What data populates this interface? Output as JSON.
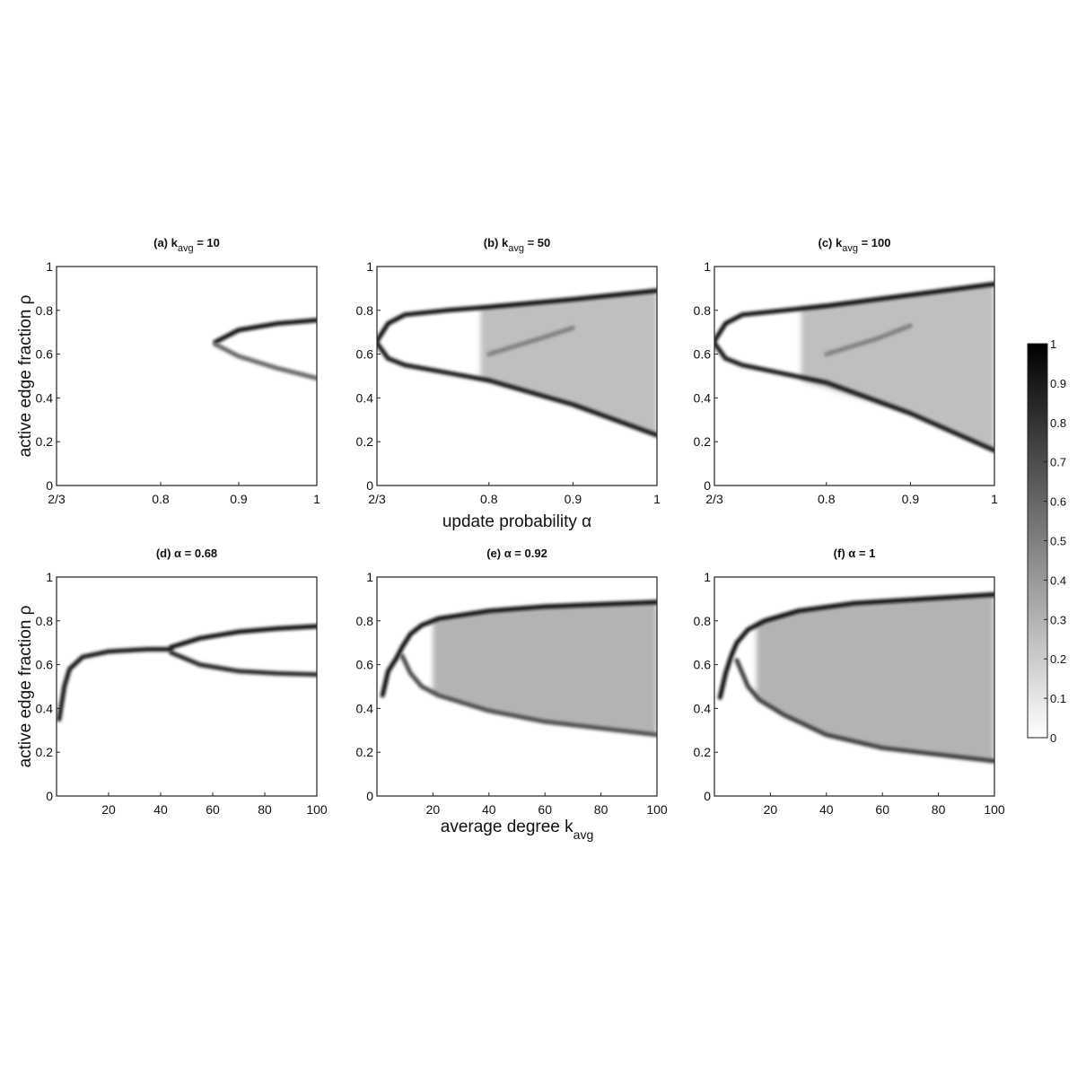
{
  "chart_data": {
    "type": "heatmap",
    "description_labels": {
      "xlabel_top": "update probability α",
      "xlabel_bottom_main": "average degree k",
      "xlabel_bottom_sub": "avg",
      "ylabel": "active edge fraction ρ"
    },
    "colorbar": {
      "range": [
        0,
        1
      ],
      "ticks": [
        "0",
        "0.1",
        "0.2",
        "0.3",
        "0.4",
        "0.5",
        "0.6",
        "0.7",
        "0.8",
        "0.9",
        "1"
      ],
      "colormap": "white-to-black"
    },
    "panels": [
      {
        "id": "a",
        "title_prefix": "(a) k",
        "title_sub": "avg",
        "title_suffix": " = 10",
        "xlim": [
          0.6667,
          1
        ],
        "ylim": [
          0,
          1
        ],
        "xticks": [
          [
            0.6667,
            "2/3"
          ],
          [
            0.8,
            "0.8"
          ],
          [
            0.9,
            "0.9"
          ],
          [
            1,
            "1"
          ]
        ],
        "yticks": [
          "0",
          "0.2",
          "0.4",
          "0.6",
          "0.8",
          "1"
        ],
        "branches": [
          {
            "pts": [
              [
                0.6667,
                0.65
              ],
              [
                0.8,
                0.65
              ],
              [
                0.87,
                0.65
              ]
            ],
            "intensity": 0.95
          },
          {
            "pts": [
              [
                0.87,
                0.655
              ],
              [
                0.9,
                0.71
              ],
              [
                0.95,
                0.74
              ],
              [
                1,
                0.755
              ]
            ],
            "intensity": 0.95
          },
          {
            "pts": [
              [
                0.87,
                0.645
              ],
              [
                0.9,
                0.59
              ],
              [
                0.95,
                0.535
              ],
              [
                1,
                0.49
              ]
            ],
            "intensity": 0.6
          }
        ],
        "clouds": []
      },
      {
        "id": "b",
        "title_prefix": "(b) k",
        "title_sub": "avg",
        "title_suffix": " = 50",
        "xlim": [
          0.6667,
          1
        ],
        "ylim": [
          0,
          1
        ],
        "xticks": [
          [
            0.6667,
            "2/3"
          ],
          [
            0.8,
            "0.8"
          ],
          [
            0.9,
            "0.9"
          ],
          [
            1,
            "1"
          ]
        ],
        "yticks": [
          "0",
          "0.2",
          "0.4",
          "0.6",
          "0.8",
          "1"
        ],
        "branches": [
          {
            "pts": [
              [
                0.6667,
                0.66
              ],
              [
                0.68,
                0.74
              ],
              [
                0.7,
                0.78
              ],
              [
                0.75,
                0.8
              ],
              [
                0.8,
                0.815
              ],
              [
                0.9,
                0.85
              ],
              [
                1,
                0.89
              ]
            ],
            "intensity": 0.95
          },
          {
            "pts": [
              [
                0.6667,
                0.65
              ],
              [
                0.68,
                0.58
              ],
              [
                0.7,
                0.55
              ],
              [
                0.75,
                0.515
              ],
              [
                0.8,
                0.48
              ],
              [
                0.9,
                0.37
              ],
              [
                1,
                0.23
              ]
            ],
            "intensity": 0.9
          },
          {
            "pts": [
              [
                0.8,
                0.6
              ],
              [
                0.86,
                0.67
              ],
              [
                0.9,
                0.72
              ]
            ],
            "intensity": 0.5
          }
        ],
        "clouds": [
          {
            "upper": [
              [
                0.79,
                0.81
              ],
              [
                0.9,
                0.85
              ],
              [
                1,
                0.89
              ]
            ],
            "lower": [
              [
                0.79,
                0.49
              ],
              [
                0.9,
                0.37
              ],
              [
                1,
                0.23
              ]
            ],
            "intensity": 0.25
          }
        ]
      },
      {
        "id": "c",
        "title_prefix": "(c) k",
        "title_sub": "avg",
        "title_suffix": " = 100",
        "xlim": [
          0.6667,
          1
        ],
        "ylim": [
          0,
          1
        ],
        "xticks": [
          [
            0.6667,
            "2/3"
          ],
          [
            0.8,
            "0.8"
          ],
          [
            0.9,
            "0.9"
          ],
          [
            1,
            "1"
          ]
        ],
        "yticks": [
          "0",
          "0.2",
          "0.4",
          "0.6",
          "0.8",
          "1"
        ],
        "branches": [
          {
            "pts": [
              [
                0.6667,
                0.66
              ],
              [
                0.68,
                0.74
              ],
              [
                0.7,
                0.78
              ],
              [
                0.75,
                0.8
              ],
              [
                0.8,
                0.82
              ],
              [
                0.9,
                0.87
              ],
              [
                1,
                0.92
              ]
            ],
            "intensity": 0.95
          },
          {
            "pts": [
              [
                0.6667,
                0.65
              ],
              [
                0.68,
                0.58
              ],
              [
                0.7,
                0.55
              ],
              [
                0.75,
                0.51
              ],
              [
                0.8,
                0.47
              ],
              [
                0.9,
                0.33
              ],
              [
                1,
                0.16
              ]
            ],
            "intensity": 0.9
          },
          {
            "pts": [
              [
                0.8,
                0.6
              ],
              [
                0.86,
                0.67
              ],
              [
                0.9,
                0.73
              ]
            ],
            "intensity": 0.5
          }
        ],
        "clouds": [
          {
            "upper": [
              [
                0.77,
                0.81
              ],
              [
                0.9,
                0.87
              ],
              [
                1,
                0.92
              ]
            ],
            "lower": [
              [
                0.77,
                0.48
              ],
              [
                0.9,
                0.33
              ],
              [
                1,
                0.16
              ]
            ],
            "intensity": 0.25
          }
        ]
      },
      {
        "id": "d",
        "title_prefix": "(d) α",
        "title_sub": "",
        "title_suffix": " = 0.68",
        "xlim": [
          0,
          100
        ],
        "ylim": [
          0,
          1
        ],
        "xticks": [
          [
            20,
            "20"
          ],
          [
            40,
            "40"
          ],
          [
            60,
            "60"
          ],
          [
            80,
            "80"
          ],
          [
            100,
            "100"
          ]
        ],
        "yticks": [
          "0",
          "0.2",
          "0.4",
          "0.6",
          "0.8",
          "1"
        ],
        "branches": [
          {
            "pts": [
              [
                1,
                0.35
              ],
              [
                3,
                0.5
              ],
              [
                5,
                0.58
              ],
              [
                10,
                0.635
              ],
              [
                20,
                0.66
              ],
              [
                35,
                0.67
              ],
              [
                44,
                0.67
              ]
            ],
            "intensity": 0.9
          },
          {
            "pts": [
              [
                44,
                0.68
              ],
              [
                55,
                0.72
              ],
              [
                70,
                0.75
              ],
              [
                85,
                0.765
              ],
              [
                100,
                0.775
              ]
            ],
            "intensity": 0.95
          },
          {
            "pts": [
              [
                44,
                0.655
              ],
              [
                55,
                0.6
              ],
              [
                70,
                0.57
              ],
              [
                85,
                0.56
              ],
              [
                100,
                0.555
              ]
            ],
            "intensity": 0.85
          }
        ],
        "clouds": []
      },
      {
        "id": "e",
        "title_prefix": "(e) α",
        "title_sub": "",
        "title_suffix": " = 0.92",
        "xlim": [
          0,
          100
        ],
        "ylim": [
          0,
          1
        ],
        "xticks": [
          [
            20,
            "20"
          ],
          [
            40,
            "40"
          ],
          [
            60,
            "60"
          ],
          [
            80,
            "80"
          ],
          [
            100,
            "100"
          ]
        ],
        "yticks": [
          "0",
          "0.2",
          "0.4",
          "0.6",
          "0.8",
          "1"
        ],
        "branches": [
          {
            "pts": [
              [
                2,
                0.46
              ],
              [
                4,
                0.57
              ],
              [
                7,
                0.63
              ],
              [
                9,
                0.68
              ],
              [
                12,
                0.74
              ],
              [
                16,
                0.78
              ],
              [
                22,
                0.81
              ],
              [
                40,
                0.845
              ],
              [
                60,
                0.865
              ],
              [
                100,
                0.885
              ]
            ],
            "intensity": 0.95
          },
          {
            "pts": [
              [
                9,
                0.64
              ],
              [
                12,
                0.56
              ],
              [
                16,
                0.5
              ],
              [
                22,
                0.46
              ],
              [
                40,
                0.39
              ],
              [
                60,
                0.34
              ],
              [
                100,
                0.28
              ]
            ],
            "intensity": 0.7
          }
        ],
        "clouds": [
          {
            "upper": [
              [
                20,
                0.8
              ],
              [
                40,
                0.845
              ],
              [
                60,
                0.865
              ],
              [
                100,
                0.885
              ]
            ],
            "lower": [
              [
                20,
                0.47
              ],
              [
                40,
                0.39
              ],
              [
                60,
                0.34
              ],
              [
                100,
                0.28
              ]
            ],
            "intensity": 0.3
          }
        ]
      },
      {
        "id": "f",
        "title_prefix": "(f) α",
        "title_sub": "",
        "title_suffix": " = 1",
        "xlim": [
          0,
          100
        ],
        "ylim": [
          0,
          1
        ],
        "xticks": [
          [
            20,
            "20"
          ],
          [
            40,
            "40"
          ],
          [
            60,
            "60"
          ],
          [
            80,
            "80"
          ],
          [
            100,
            "100"
          ]
        ],
        "yticks": [
          "0",
          "0.2",
          "0.4",
          "0.6",
          "0.8",
          "1"
        ],
        "branches": [
          {
            "pts": [
              [
                2,
                0.45
              ],
              [
                4,
                0.56
              ],
              [
                6,
                0.64
              ],
              [
                8,
                0.7
              ],
              [
                12,
                0.76
              ],
              [
                18,
                0.8
              ],
              [
                30,
                0.845
              ],
              [
                50,
                0.88
              ],
              [
                75,
                0.9
              ],
              [
                100,
                0.92
              ]
            ],
            "intensity": 0.95
          },
          {
            "pts": [
              [
                8,
                0.62
              ],
              [
                12,
                0.5
              ],
              [
                16,
                0.44
              ],
              [
                25,
                0.37
              ],
              [
                40,
                0.28
              ],
              [
                60,
                0.22
              ],
              [
                100,
                0.16
              ]
            ],
            "intensity": 0.75
          }
        ],
        "clouds": [
          {
            "upper": [
              [
                15,
                0.79
              ],
              [
                30,
                0.845
              ],
              [
                50,
                0.88
              ],
              [
                75,
                0.9
              ],
              [
                100,
                0.92
              ]
            ],
            "lower": [
              [
                15,
                0.45
              ],
              [
                25,
                0.37
              ],
              [
                40,
                0.28
              ],
              [
                60,
                0.22
              ],
              [
                100,
                0.16
              ]
            ],
            "intensity": 0.3
          }
        ]
      }
    ]
  }
}
